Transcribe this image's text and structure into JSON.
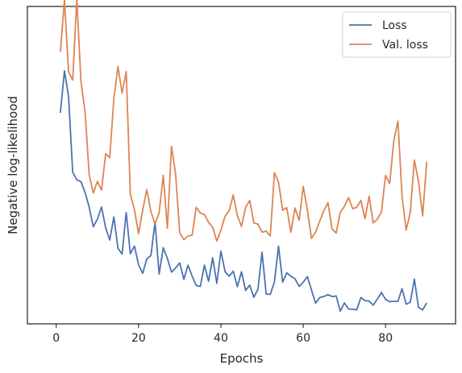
{
  "chart_data": {
    "type": "line",
    "xlabel": "Epochs",
    "ylabel": "Negative log-likelihood",
    "xlim": [
      -7,
      97
    ],
    "ylim": [
      0,
      100
    ],
    "x_ticks": [
      0,
      20,
      40,
      60,
      80
    ],
    "y_ticks_shown": false,
    "grid": false,
    "legend_position": "top-right",
    "x": [
      1,
      2,
      3,
      4,
      5,
      6,
      7,
      8,
      9,
      10,
      11,
      12,
      13,
      14,
      15,
      16,
      17,
      18,
      19,
      20,
      21,
      22,
      23,
      24,
      25,
      26,
      27,
      28,
      29,
      30,
      31,
      32,
      33,
      34,
      35,
      36,
      37,
      38,
      39,
      40,
      41,
      42,
      43,
      44,
      45,
      46,
      47,
      48,
      49,
      50,
      51,
      52,
      53,
      54,
      55,
      56,
      57,
      58,
      59,
      60,
      61,
      62,
      63,
      64,
      65,
      66,
      67,
      68,
      69,
      70,
      71,
      72,
      73,
      74,
      75,
      76,
      77,
      78,
      79,
      80,
      81,
      82,
      83,
      84,
      85,
      86,
      87,
      88,
      89,
      90
    ],
    "series": [
      {
        "name": "Loss",
        "color": "#4c72b0",
        "values": [
          66.5,
          79.7,
          71.6,
          47.8,
          45.4,
          44.8,
          41.4,
          36.8,
          30.6,
          33.0,
          36.8,
          30.3,
          26.4,
          33.7,
          23.8,
          22.0,
          35.1,
          22.1,
          24.5,
          18.6,
          15.9,
          20.5,
          21.5,
          32.1,
          15.7,
          24.0,
          20.6,
          16.3,
          17.6,
          19.2,
          14.0,
          18.5,
          15.1,
          12.1,
          11.8,
          18.5,
          13.4,
          20.8,
          12.8,
          22.9,
          16.5,
          15.0,
          16.6,
          11.7,
          16.4,
          10.5,
          12.2,
          8.4,
          10.9,
          22.6,
          9.4,
          9.3,
          13.2,
          24.5,
          13.1,
          16.1,
          15.0,
          14.2,
          11.8,
          13.1,
          14.9,
          10.7,
          6.5,
          8.3,
          8.6,
          9.2,
          8.6,
          8.8,
          4.0,
          6.6,
          4.7,
          4.6,
          4.4,
          8.3,
          7.3,
          7.2,
          5.9,
          7.8,
          9.9,
          7.7,
          7.0,
          7.1,
          7.1,
          11.1,
          6.2,
          6.8,
          14.1,
          5.2,
          4.4,
          6.6
        ]
      },
      {
        "name": "Val. loss",
        "color": "#dd8452",
        "values": [
          85.7,
          102.0,
          79.4,
          76.8,
          102.4,
          76.4,
          66.8,
          47.1,
          41.2,
          44.9,
          42.1,
          53.6,
          52.4,
          71.0,
          81.1,
          72.7,
          79.5,
          40.9,
          35.9,
          28.4,
          35.8,
          42.3,
          35.4,
          31.4,
          35.0,
          46.8,
          30.1,
          55.9,
          47.2,
          28.7,
          26.5,
          27.7,
          27.9,
          36.7,
          34.9,
          34.4,
          32.0,
          30.4,
          26.1,
          29.5,
          33.9,
          35.6,
          40.6,
          34.1,
          30.7,
          36.7,
          38.9,
          31.8,
          31.4,
          28.9,
          29.2,
          27.7,
          47.6,
          44.6,
          35.8,
          36.6,
          28.9,
          36.5,
          32.6,
          43.3,
          35.9,
          26.9,
          28.9,
          32.3,
          35.6,
          38.2,
          29.9,
          28.6,
          35.2,
          37.0,
          39.8,
          36.3,
          36.7,
          38.9,
          33.1,
          40.2,
          31.8,
          33.0,
          35.3,
          46.8,
          44.2,
          57.7,
          63.9,
          40.3,
          29.5,
          35.1,
          51.6,
          44.9,
          34.0,
          51.0
        ]
      }
    ]
  }
}
